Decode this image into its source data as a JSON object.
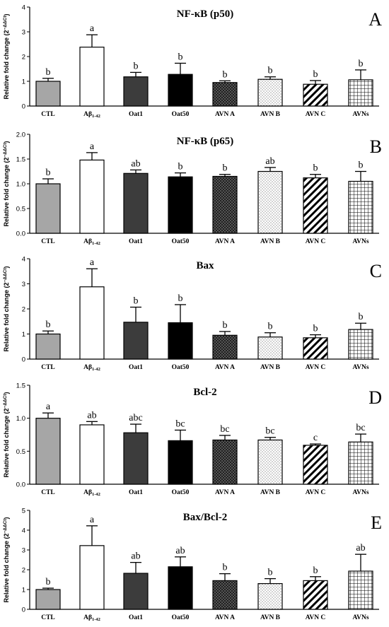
{
  "chart_data": [
    {
      "type": "bar",
      "panel": "A",
      "title": "NF-κB (p50)",
      "ylabel": "Relative fold change (2",
      "ylabel_sup": "−ΔΔCt",
      "ylabel_end": ")",
      "ylim": [
        0,
        4
      ],
      "yticks": [
        "0",
        "1",
        "2",
        "3",
        "4"
      ],
      "categories": [
        "CTL",
        "Aβ",
        "Oat1",
        "Oat50",
        "AVN A",
        "AVN B",
        "AVN C",
        "AVNs"
      ],
      "category_sub": [
        "",
        "1-42",
        "",
        "",
        "",
        "",
        "",
        ""
      ],
      "values": [
        1.0,
        2.38,
        1.18,
        1.28,
        0.95,
        1.08,
        0.88,
        1.06
      ],
      "errors": [
        0.12,
        0.5,
        0.18,
        0.45,
        0.07,
        0.1,
        0.15,
        0.4
      ],
      "letters": [
        "b",
        "a",
        "b",
        "b",
        "b",
        "b",
        "b",
        "b"
      ]
    },
    {
      "type": "bar",
      "panel": "B",
      "title": "NF-κB (p65)",
      "ylabel": "Relative fold change (2",
      "ylabel_sup": "−ΔΔCt",
      "ylabel_end": ")",
      "ylim": [
        0,
        2.0
      ],
      "yticks": [
        "0.0",
        "0.5",
        "1.0",
        "1.5",
        "2.0"
      ],
      "categories": [
        "CTL",
        "Aβ",
        "Oat1",
        "Oat50",
        "AVN A",
        "AVN B",
        "AVN C",
        "AVNs"
      ],
      "category_sub": [
        "",
        "1-42",
        "",
        "",
        "",
        "",
        "",
        ""
      ],
      "values": [
        1.0,
        1.48,
        1.21,
        1.14,
        1.15,
        1.25,
        1.12,
        1.05
      ],
      "errors": [
        0.1,
        0.15,
        0.07,
        0.08,
        0.04,
        0.08,
        0.07,
        0.2
      ],
      "letters": [
        "b",
        "a",
        "ab",
        "b",
        "b",
        "ab",
        "b",
        "b"
      ]
    },
    {
      "type": "bar",
      "panel": "C",
      "title": "Bax",
      "ylabel": "Relative fold change (2",
      "ylabel_sup": "−ΔΔCt",
      "ylabel_end": ")",
      "ylim": [
        0,
        4
      ],
      "yticks": [
        "0",
        "1",
        "2",
        "3",
        "4"
      ],
      "categories": [
        "CTL",
        "Aβ",
        "Oat1",
        "Oat50",
        "AVN A",
        "AVN B",
        "AVN C",
        "AVNs"
      ],
      "category_sub": [
        "",
        "1-42",
        "",
        "",
        "",
        "",
        "",
        ""
      ],
      "values": [
        1.0,
        2.88,
        1.47,
        1.45,
        0.95,
        0.88,
        0.85,
        1.18
      ],
      "errors": [
        0.12,
        0.72,
        0.6,
        0.72,
        0.15,
        0.17,
        0.12,
        0.25
      ],
      "letters": [
        "b",
        "a",
        "b",
        "b",
        "b",
        "b",
        "b",
        "b"
      ]
    },
    {
      "type": "bar",
      "panel": "D",
      "title": "Bcl-2",
      "ylabel": "Relative fold change (2",
      "ylabel_sup": "−ΔΔCt",
      "ylabel_end": ")",
      "ylim": [
        0,
        1.5
      ],
      "yticks": [
        "0.0",
        "0.5",
        "1.0",
        "1.5"
      ],
      "categories": [
        "CTL",
        "Aβ",
        "Oat1",
        "Oat50",
        "AVN A",
        "AVN B",
        "AVN C",
        "AVNs"
      ],
      "category_sub": [
        "",
        "1-42",
        "",
        "",
        "",
        "",
        "",
        ""
      ],
      "values": [
        1.0,
        0.9,
        0.78,
        0.66,
        0.67,
        0.67,
        0.59,
        0.64
      ],
      "errors": [
        0.08,
        0.05,
        0.13,
        0.16,
        0.07,
        0.04,
        0.02,
        0.12
      ],
      "letters": [
        "a",
        "ab",
        "abc",
        "bc",
        "bc",
        "bc",
        "c",
        "bc"
      ]
    },
    {
      "type": "bar",
      "panel": "E",
      "title": "Bax/Bcl-2",
      "ylabel": "Relative fold change (2",
      "ylabel_sup": "−ΔΔCt",
      "ylabel_end": ")",
      "ylim": [
        0,
        5
      ],
      "yticks": [
        "0",
        "1",
        "2",
        "3",
        "4",
        "5"
      ],
      "categories": [
        "CTL",
        "Aβ",
        "Oat1",
        "Oat50",
        "AVN A",
        "AVN B",
        "AVN C",
        "AVNs"
      ],
      "category_sub": [
        "",
        "1-42",
        "",
        "",
        "",
        "",
        "",
        ""
      ],
      "values": [
        1.0,
        3.22,
        1.82,
        2.15,
        1.45,
        1.3,
        1.45,
        1.93
      ],
      "errors": [
        0.07,
        1.0,
        0.55,
        0.5,
        0.35,
        0.25,
        0.2,
        0.85
      ],
      "letters": [
        "b",
        "a",
        "ab",
        "ab",
        "b",
        "b",
        "b",
        "ab"
      ]
    }
  ],
  "bar_styles": [
    {
      "fill": "#a6a6a6",
      "pattern": "solid"
    },
    {
      "fill": "#ffffff",
      "pattern": "solid"
    },
    {
      "fill": "#3c3c3c",
      "pattern": "solid"
    },
    {
      "fill": "#000000",
      "pattern": "solid"
    },
    {
      "fill": "#555555",
      "pattern": "crosshatch"
    },
    {
      "fill": "#ffffff",
      "pattern": "dots"
    },
    {
      "fill": "#ffffff",
      "pattern": "diagonal"
    },
    {
      "fill": "#ffffff",
      "pattern": "grid"
    }
  ]
}
